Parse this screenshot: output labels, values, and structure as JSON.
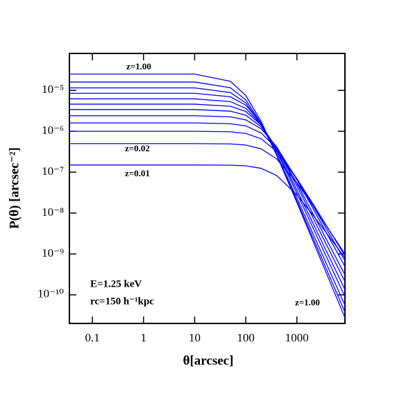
{
  "chart_data": {
    "type": "line",
    "x_label": "θ[arcsec]",
    "y_label": "P(θ) [arcsec⁻²]",
    "log_x": true,
    "log_y": true,
    "xlim": [
      0.0355,
      8700
    ],
    "ylim": [
      2e-11,
      8e-05
    ],
    "xticks": [
      0.1,
      1,
      10,
      100,
      1000
    ],
    "yticks": [
      {
        "value": 1e-10,
        "label": "10⁻¹⁰"
      },
      {
        "value": 1e-09,
        "label": "10⁻⁹"
      },
      {
        "value": 1e-08,
        "label": "10⁻⁸"
      },
      {
        "value": 1e-07,
        "label": "10⁻⁷"
      },
      {
        "value": 1e-06,
        "label": "10⁻⁶"
      },
      {
        "value": 1e-05,
        "label": "10⁻⁵"
      }
    ],
    "x": [
      0.0355,
      10,
      50,
      100,
      200,
      400,
      1000,
      2000,
      4000,
      8700
    ],
    "series": [
      {
        "color": "#0000ff",
        "values": [
          1.5e-07,
          1.5e-07,
          1.48e-07,
          1.43e-07,
          1.24e-07,
          8.3e-08,
          2.79e-08,
          9.4e-09,
          2.97e-09,
          7.96e-10
        ]
      },
      {
        "color": "#0000ff",
        "values": [
          5e-07,
          5e-07,
          4.9e-07,
          4.6e-07,
          3.72e-07,
          2.12e-07,
          5.5e-08,
          1.59e-08,
          4.34e-09,
          9.95e-10
        ]
      },
      {
        "color": "#0000ff",
        "values": [
          1e-06,
          1e-06,
          9.7e-07,
          8.85e-07,
          6.56e-07,
          3.21e-07,
          6.9e-08,
          1.78e-08,
          4.39e-09,
          9e-10
        ]
      },
      {
        "color": "#0000ff",
        "values": [
          1.6e-06,
          1.6e-06,
          1.53e-06,
          1.35e-06,
          9.06e-07,
          3.81e-07,
          6.9e-08,
          1.61e-08,
          3.65e-09,
          6.84e-10
        ]
      },
      {
        "color": "#0000ff",
        "values": [
          2.4e-06,
          2.4e-06,
          2.25e-06,
          1.9e-06,
          1.15e-06,
          4.19e-07,
          6.52e-08,
          1.39e-08,
          2.88e-09,
          4.92e-10
        ]
      },
      {
        "color": "#0000ff",
        "values": [
          3.4e-06,
          3.4e-06,
          3.1e-06,
          2.46e-06,
          1.29e-06,
          4e-07,
          5.33e-08,
          1.04e-08,
          1.98e-09,
          3.08e-10
        ]
      },
      {
        "color": "#0000ff",
        "values": [
          4.6e-06,
          4.6e-06,
          4.09e-06,
          3.05e-06,
          1.42e-06,
          3.87e-07,
          4.56e-08,
          8.26e-09,
          1.47e-09,
          2.11e-10
        ]
      },
      {
        "color": "#0000ff",
        "values": [
          6.2e-06,
          6.2e-06,
          5.3e-06,
          3.62e-06,
          1.46e-06,
          3.48e-07,
          3.64e-08,
          6.11e-09,
          1.01e-09,
          1.35e-10
        ]
      },
      {
        "color": "#0000ff",
        "values": [
          8.5e-06,
          8.5e-06,
          6.95e-06,
          4.36e-06,
          1.53e-06,
          3.24e-07,
          3.03e-08,
          4.73e-09,
          7.31e-10,
          9e-11
        ]
      },
      {
        "color": "#0000ff",
        "values": [
          1.15e-05,
          1.15e-05,
          8.85e-06,
          4.95e-06,
          1.49e-06,
          2.8e-07,
          2.34e-08,
          3.4e-09,
          4.9e-10,
          5.58e-11
        ]
      },
      {
        "color": "#0000ff",
        "values": [
          1.6e-05,
          1.6e-05,
          1.16e-05,
          5.86e-06,
          1.55e-06,
          2.63e-07,
          1.99e-08,
          2.69e-09,
          3.61e-10,
          3.79e-11
        ]
      },
      {
        "color": "#0000ff",
        "values": [
          2.5e-05,
          2.5e-05,
          1.67e-05,
          7.48e-06,
          1.73e-06,
          2.64e-07,
          1.8e-08,
          2.26e-09,
          2.84e-10,
          2.76e-11
        ]
      }
    ],
    "annotations": [
      "z=1.00",
      "z=0.02",
      "z=0.01",
      "E=1.25 keV",
      "rc=150 h⁻¹kpc",
      "z=1.00"
    ]
  }
}
